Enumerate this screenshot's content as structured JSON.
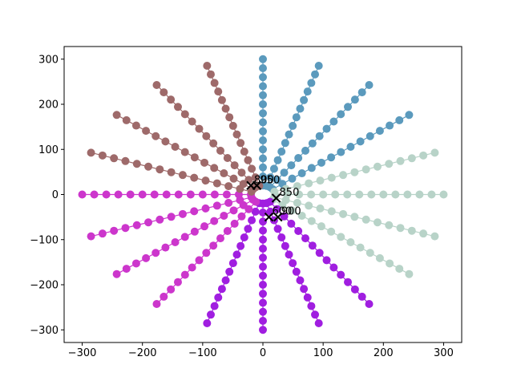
{
  "chart_data": {
    "type": "scatter",
    "title": "",
    "xlabel": "",
    "ylabel": "",
    "xlim": [
      -330,
      330
    ],
    "ylim": [
      -328,
      328
    ],
    "xticks": [
      -300,
      -200,
      -100,
      0,
      100,
      200,
      300
    ],
    "yticks": [
      -300,
      -200,
      -100,
      0,
      100,
      200,
      300
    ],
    "xtick_labels": [
      "−300",
      "−200",
      "−100",
      "0",
      "100",
      "200",
      "300"
    ],
    "ytick_labels": [
      "−300",
      "−200",
      "−100",
      "0",
      "100",
      "200",
      "300"
    ],
    "grid": false,
    "legend": "none",
    "series_colors": [
      "#5b9abd",
      "#b8d3c8",
      "#a01ee0",
      "#cc36cc",
      "#9e6a6a"
    ],
    "spiral": {
      "arms": 20,
      "points_per_arm": 15,
      "radius_min": 20,
      "radius_max": 300,
      "start_angle_deg": 90,
      "direction": "clockwise"
    },
    "annotations": [
      {
        "text": "800",
        "x": -20,
        "y": 20
      },
      {
        "text": "850",
        "x": 22,
        "y": -8
      },
      {
        "text": "900",
        "x": 25,
        "y": -50
      },
      {
        "text": "950",
        "x": -10,
        "y": 20
      },
      {
        "text": "600",
        "x": 10,
        "y": -50
      }
    ]
  }
}
